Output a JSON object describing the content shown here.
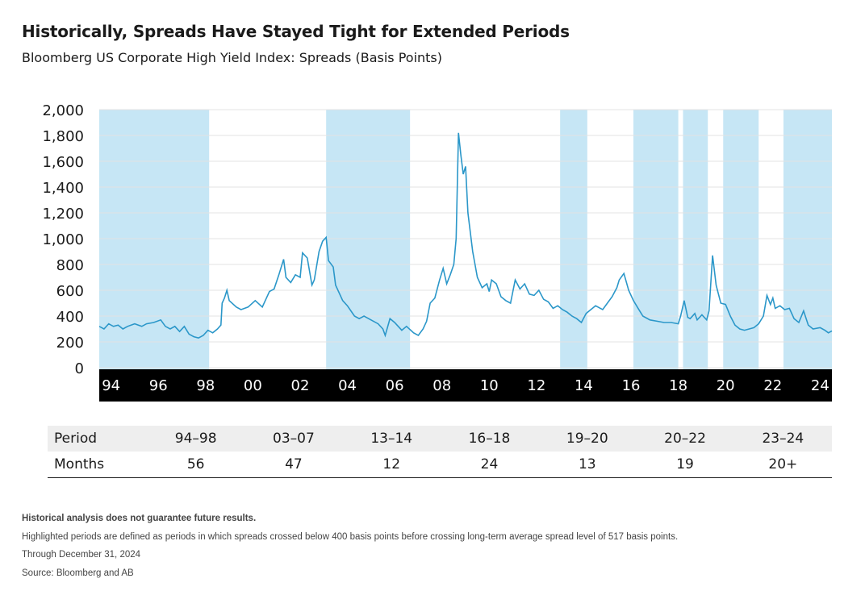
{
  "header": {
    "title": "Historically, Spreads Have Stayed Tight for Extended Periods",
    "subtitle": "Bloomberg US Corporate High Yield Index: Spreads (Basis Points)"
  },
  "colors": {
    "line": "#2b97c9",
    "band": "#c6e6f5",
    "axis_bar": "#000000",
    "grid": "#e3e3e3"
  },
  "chart_data": {
    "type": "line",
    "ylim": [
      0,
      2000
    ],
    "yticks": [
      0,
      200,
      400,
      600,
      800,
      1000,
      1200,
      1400,
      1600,
      1800,
      2000
    ],
    "ytick_labels": [
      "0",
      "200",
      "400",
      "600",
      "800",
      "1,000",
      "1,200",
      "1,400",
      "1,600",
      "1,800",
      "2,000"
    ],
    "xlim": [
      1994.0,
      2025.0
    ],
    "xticks": [
      1994.5,
      1996.5,
      1998.5,
      2000.5,
      2002.5,
      2004.5,
      2006.5,
      2008.5,
      2010.5,
      2012.5,
      2014.5,
      2016.5,
      2018.5,
      2020.5,
      2022.5,
      2024.5
    ],
    "xtick_labels": [
      "94",
      "96",
      "98",
      "00",
      "02",
      "04",
      "06",
      "08",
      "10",
      "12",
      "14",
      "16",
      "18",
      "20",
      "22",
      "24"
    ],
    "highlight_periods": [
      [
        1994.0,
        1998.65
      ],
      [
        2003.6,
        2007.15
      ],
      [
        2013.5,
        2014.65
      ],
      [
        2016.6,
        2018.5
      ],
      [
        2018.7,
        2019.75
      ],
      [
        2020.4,
        2021.9
      ],
      [
        2022.95,
        2025.0
      ]
    ],
    "series": [
      {
        "values": [
          [
            1994.0,
            320
          ],
          [
            1994.2,
            300
          ],
          [
            1994.4,
            340
          ],
          [
            1994.6,
            320
          ],
          [
            1994.8,
            330
          ],
          [
            1995.0,
            300
          ],
          [
            1995.2,
            320
          ],
          [
            1995.5,
            340
          ],
          [
            1995.8,
            320
          ],
          [
            1996.0,
            340
          ],
          [
            1996.3,
            350
          ],
          [
            1996.6,
            370
          ],
          [
            1996.8,
            320
          ],
          [
            1997.0,
            300
          ],
          [
            1997.2,
            320
          ],
          [
            1997.4,
            280
          ],
          [
            1997.6,
            320
          ],
          [
            1997.8,
            260
          ],
          [
            1998.0,
            240
          ],
          [
            1998.2,
            230
          ],
          [
            1998.4,
            250
          ],
          [
            1998.6,
            290
          ],
          [
            1998.8,
            270
          ],
          [
            1999.0,
            300
          ],
          [
            1999.15,
            330
          ],
          [
            1999.2,
            500
          ],
          [
            1999.3,
            540
          ],
          [
            1999.4,
            600
          ],
          [
            1999.5,
            520
          ],
          [
            1999.8,
            470
          ],
          [
            2000.0,
            450
          ],
          [
            2000.3,
            470
          ],
          [
            2000.6,
            520
          ],
          [
            2000.9,
            470
          ],
          [
            2001.2,
            590
          ],
          [
            2001.4,
            610
          ],
          [
            2001.6,
            720
          ],
          [
            2001.8,
            840
          ],
          [
            2001.9,
            700
          ],
          [
            2002.1,
            660
          ],
          [
            2002.3,
            720
          ],
          [
            2002.5,
            700
          ],
          [
            2002.6,
            890
          ],
          [
            2002.8,
            850
          ],
          [
            2003.0,
            640
          ],
          [
            2003.1,
            680
          ],
          [
            2003.3,
            900
          ],
          [
            2003.45,
            980
          ],
          [
            2003.6,
            1010
          ],
          [
            2003.7,
            830
          ],
          [
            2003.9,
            780
          ],
          [
            2004.0,
            640
          ],
          [
            2004.3,
            520
          ],
          [
            2004.5,
            480
          ],
          [
            2004.8,
            400
          ],
          [
            2005.0,
            380
          ],
          [
            2005.2,
            400
          ],
          [
            2005.5,
            370
          ],
          [
            2005.8,
            340
          ],
          [
            2006.0,
            300
          ],
          [
            2006.1,
            250
          ],
          [
            2006.3,
            380
          ],
          [
            2006.5,
            350
          ],
          [
            2006.8,
            290
          ],
          [
            2007.0,
            320
          ],
          [
            2007.3,
            270
          ],
          [
            2007.5,
            250
          ],
          [
            2007.7,
            300
          ],
          [
            2007.85,
            360
          ],
          [
            2008.0,
            500
          ],
          [
            2008.2,
            540
          ],
          [
            2008.4,
            680
          ],
          [
            2008.55,
            770
          ],
          [
            2008.7,
            650
          ],
          [
            2008.85,
            720
          ],
          [
            2009.0,
            800
          ],
          [
            2009.1,
            1000
          ],
          [
            2009.2,
            1820
          ],
          [
            2009.3,
            1650
          ],
          [
            2009.4,
            1500
          ],
          [
            2009.5,
            1560
          ],
          [
            2009.6,
            1200
          ],
          [
            2009.8,
            900
          ],
          [
            2010.0,
            700
          ],
          [
            2010.2,
            620
          ],
          [
            2010.4,
            650
          ],
          [
            2010.5,
            590
          ],
          [
            2010.6,
            680
          ],
          [
            2010.8,
            650
          ],
          [
            2011.0,
            550
          ],
          [
            2011.2,
            520
          ],
          [
            2011.4,
            500
          ],
          [
            2011.6,
            680
          ],
          [
            2011.8,
            610
          ],
          [
            2012.0,
            650
          ],
          [
            2012.2,
            570
          ],
          [
            2012.4,
            560
          ],
          [
            2012.6,
            600
          ],
          [
            2012.8,
            530
          ],
          [
            2013.0,
            510
          ],
          [
            2013.2,
            460
          ],
          [
            2013.4,
            480
          ],
          [
            2013.6,
            450
          ],
          [
            2013.8,
            430
          ],
          [
            2014.0,
            400
          ],
          [
            2014.2,
            380
          ],
          [
            2014.4,
            350
          ],
          [
            2014.6,
            420
          ],
          [
            2014.8,
            450
          ],
          [
            2015.0,
            480
          ],
          [
            2015.3,
            450
          ],
          [
            2015.5,
            500
          ],
          [
            2015.7,
            550
          ],
          [
            2015.9,
            620
          ],
          [
            2016.0,
            680
          ],
          [
            2016.2,
            730
          ],
          [
            2016.4,
            600
          ],
          [
            2016.6,
            520
          ],
          [
            2016.8,
            460
          ],
          [
            2017.0,
            400
          ],
          [
            2017.3,
            370
          ],
          [
            2017.6,
            360
          ],
          [
            2017.9,
            350
          ],
          [
            2018.2,
            350
          ],
          [
            2018.5,
            340
          ],
          [
            2018.6,
            400
          ],
          [
            2018.75,
            520
          ],
          [
            2018.9,
            390
          ],
          [
            2019.0,
            380
          ],
          [
            2019.2,
            420
          ],
          [
            2019.3,
            370
          ],
          [
            2019.5,
            410
          ],
          [
            2019.7,
            370
          ],
          [
            2019.8,
            440
          ],
          [
            2019.95,
            870
          ],
          [
            2020.1,
            640
          ],
          [
            2020.3,
            500
          ],
          [
            2020.5,
            490
          ],
          [
            2020.7,
            400
          ],
          [
            2020.9,
            330
          ],
          [
            2021.1,
            300
          ],
          [
            2021.3,
            290
          ],
          [
            2021.5,
            300
          ],
          [
            2021.7,
            310
          ],
          [
            2021.9,
            340
          ],
          [
            2022.1,
            400
          ],
          [
            2022.25,
            560
          ],
          [
            2022.4,
            490
          ],
          [
            2022.5,
            540
          ],
          [
            2022.6,
            460
          ],
          [
            2022.8,
            480
          ],
          [
            2023.0,
            450
          ],
          [
            2023.2,
            460
          ],
          [
            2023.4,
            380
          ],
          [
            2023.6,
            350
          ],
          [
            2023.8,
            440
          ],
          [
            2024.0,
            330
          ],
          [
            2024.2,
            300
          ],
          [
            2024.5,
            310
          ],
          [
            2024.7,
            290
          ],
          [
            2024.85,
            270
          ],
          [
            2025.0,
            285
          ]
        ]
      }
    ]
  },
  "table": {
    "rows": [
      {
        "label": "Period",
        "cells": [
          "94–98",
          "03–07",
          "13–14",
          "16–18",
          "19–20",
          "20–22",
          "23–24"
        ]
      },
      {
        "label": "Months",
        "cells": [
          "56",
          "47",
          "12",
          "24",
          "13",
          "19",
          "20+"
        ]
      }
    ]
  },
  "notes": [
    "Historical analysis does not guarantee future results.",
    "Highlighted periods are defined as periods in which spreads crossed below 400 basis points before crossing long-term average spread level of 517 basis points.",
    "Through December 31, 2024",
    "Source: Bloomberg and AB"
  ]
}
